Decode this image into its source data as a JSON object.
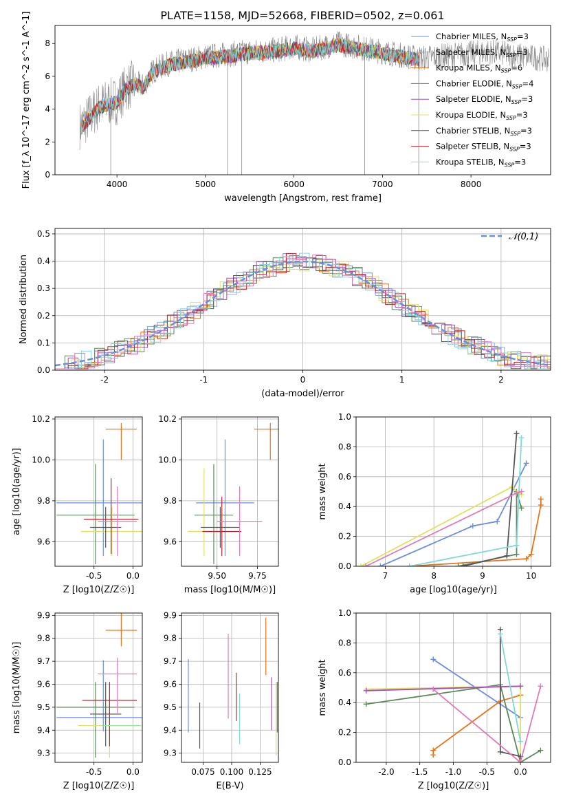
{
  "title": "PLATE=1158, MJD=52668, FIBERID=0502, z=0.061",
  "colors": {
    "chabrier_miles": "#6a8fdc",
    "salpeter_miles": "#8ab0e8",
    "kroupa_miles": "#e8731a",
    "chabrier_elodie": "#5a8a5a",
    "salpeter_elodie": "#a64db8",
    "kroupa_elodie": "#e0e060",
    "chabrier_stelib": "#555555",
    "salpeter_stelib": "#c0202a",
    "kroupa_stelib": "#80d8d8",
    "pink": "#e07ab8",
    "light_green": "#90e890",
    "data_grey": "#888888"
  },
  "chart_data": [
    {
      "type": "line",
      "panel": "spectrum",
      "xlabel": "wavelength [Angstrom, rest frame]",
      "ylabel": "Flux [f_λ 10^-17 erg cm^-2 s^-1 A^-1]",
      "xlim": [
        3300,
        8900
      ],
      "ylim": [
        0,
        9.1
      ],
      "xticks": [
        4000,
        5000,
        6000,
        7000,
        8000
      ],
      "yticks": [
        0,
        2,
        4,
        6,
        8
      ],
      "legend": [
        {
          "label": "Chabrier MILES, N_SSP=3",
          "color_key": "chabrier_miles"
        },
        {
          "label": "Salpeter MILES, N_SSP=3",
          "color_key": "salpeter_miles"
        },
        {
          "label": "Kroupa MILES, N_SSP=6",
          "color_key": "kroupa_miles"
        },
        {
          "label": "Chabrier ELODIE, N_SSP=4",
          "color_key": "chabrier_elodie"
        },
        {
          "label": "Salpeter ELODIE, N_SSP=3",
          "color_key": "salpeter_elodie"
        },
        {
          "label": "Kroupa ELODIE, N_SSP=3",
          "color_key": "kroupa_elodie"
        },
        {
          "label": "Chabrier STELIB, N_SSP=3",
          "color_key": "chabrier_stelib"
        },
        {
          "label": "Salpeter STELIB, N_SSP=3",
          "color_key": "salpeter_stelib"
        },
        {
          "label": "Kroupa STELIB, N_SSP=3",
          "color_key": "kroupa_stelib"
        }
      ],
      "legend_position": "right",
      "continuum": {
        "x": [
          3600,
          3700,
          3800,
          3900,
          4000,
          4100,
          4200,
          4300,
          4400,
          4500,
          4600,
          4800,
          5000,
          5200,
          5500,
          5800,
          6000,
          6200,
          6500,
          6800,
          7000,
          7200,
          7400,
          7600,
          7800,
          8000,
          8200,
          8500,
          8900
        ],
        "y": [
          3.0,
          3.6,
          4.2,
          4.4,
          4.5,
          5.3,
          5.6,
          5.4,
          6.3,
          6.6,
          6.8,
          7.0,
          7.2,
          7.3,
          7.5,
          7.6,
          7.8,
          7.6,
          8.0,
          7.7,
          7.5,
          7.3,
          7.1,
          7.2,
          7.3,
          7.4,
          7.5,
          7.3,
          7.0
        ]
      }
    },
    {
      "type": "bar",
      "panel": "residuals",
      "xlabel": "(data-model)/error",
      "ylabel": "Normed distribution",
      "xlim": [
        -2.5,
        2.5
      ],
      "ylim": [
        0,
        0.52
      ],
      "xticks": [
        -2,
        -1,
        0,
        1,
        2
      ],
      "yticks": [
        0.0,
        0.1,
        0.2,
        0.3,
        0.4,
        0.5
      ],
      "reference_label": "𝒩(0,1)",
      "reference_curve": "normal(0,1)"
    },
    {
      "type": "scatter",
      "panel": "age_vs_Z",
      "xlabel": "Z [log10(Z/Z☉)]",
      "ylabel": "age [log10(age/yr)]",
      "xlim": [
        -1.0,
        0.12
      ],
      "ylim": [
        9.48,
        10.21
      ],
      "xticks": [
        -0.5,
        0.0
      ],
      "yticks": [
        9.6,
        9.8,
        10.0,
        10.2
      ],
      "points": [
        {
          "x": -0.38,
          "y": 9.79,
          "xerr": 0.6,
          "yerr": [
            0.26,
            0.31
          ],
          "color_key": "chabrier_miles"
        },
        {
          "x": -0.15,
          "y": 10.15,
          "xerr": 0.2,
          "yerr": [
            0.15,
            0.03
          ],
          "color_key": "kroupa_miles"
        },
        {
          "x": -0.48,
          "y": 9.73,
          "xerr": 0.5,
          "yerr": [
            0.24,
            0.25
          ],
          "color_key": "chabrier_elodie"
        },
        {
          "x": -0.27,
          "y": 9.65,
          "xerr": 0.4,
          "yerr": [
            0.12,
            0.12
          ],
          "color_key": "kroupa_elodie"
        },
        {
          "x": -0.35,
          "y": 9.67,
          "xerr": 0.2,
          "yerr": [
            0.1,
            0.1
          ],
          "color_key": "chabrier_stelib"
        },
        {
          "x": -0.28,
          "y": 9.71,
          "xerr": 0.35,
          "yerr": [
            0.17,
            0.2
          ],
          "color_key": "salpeter_stelib"
        },
        {
          "x": -0.2,
          "y": 9.7,
          "xerr": 0.25,
          "yerr": [
            0.17,
            0.17
          ],
          "color_key": "pink"
        }
      ]
    },
    {
      "type": "scatter",
      "panel": "age_vs_mass",
      "xlabel": "mass [log10(M/M☉)]",
      "ylabel": "",
      "xlim": [
        9.28,
        9.88
      ],
      "ylim": [
        9.48,
        10.21
      ],
      "xticks": [
        9.5,
        9.75
      ],
      "yticks": [
        9.6,
        9.8,
        10.0,
        10.2
      ],
      "points": [
        {
          "x": 9.55,
          "y": 9.79,
          "xerr": 0.18,
          "yerr": [
            0.26,
            0.31
          ],
          "color_key": "chabrier_miles"
        },
        {
          "x": 9.83,
          "y": 10.15,
          "xerr": 0.1,
          "yerr": [
            0.15,
            0.03
          ],
          "color_key": "kroupa_miles"
        },
        {
          "x": 9.48,
          "y": 9.73,
          "xerr": 0.12,
          "yerr": [
            0.24,
            0.25
          ],
          "color_key": "chabrier_elodie"
        },
        {
          "x": 9.42,
          "y": 9.65,
          "xerr": 0.1,
          "yerr": [
            0.12,
            0.31
          ],
          "color_key": "kroupa_elodie"
        },
        {
          "x": 9.52,
          "y": 9.67,
          "xerr": 0.12,
          "yerr": [
            0.1,
            0.1
          ],
          "color_key": "chabrier_stelib"
        },
        {
          "x": 9.53,
          "y": 9.65,
          "xerr": 0.12,
          "yerr": [
            0.12,
            0.17
          ],
          "color_key": "salpeter_stelib"
        },
        {
          "x": 9.64,
          "y": 9.7,
          "xerr": 0.14,
          "yerr": [
            0.17,
            0.17
          ],
          "color_key": "pink"
        }
      ]
    },
    {
      "type": "line",
      "panel": "weight_vs_age",
      "xlabel": "age [log10(age/yr)]",
      "ylabel": "mass weight",
      "xlim": [
        6.4,
        10.4
      ],
      "ylim": [
        0,
        1.0
      ],
      "xticks": [
        7,
        8,
        9,
        10
      ],
      "yticks": [
        0.0,
        0.2,
        0.4,
        0.6,
        0.8,
        1.0
      ],
      "series": [
        {
          "color_key": "chabrier_miles",
          "x": [
            6.9,
            8.8,
            9.3,
            9.9
          ],
          "y": [
            0.0,
            0.27,
            0.3,
            0.69
          ]
        },
        {
          "color_key": "kroupa_miles",
          "x": [
            7.5,
            9.9,
            10.0,
            10.2,
            10.2
          ],
          "y": [
            0.0,
            0.05,
            0.08,
            0.41,
            0.45
          ]
        },
        {
          "color_key": "chabrier_elodie",
          "x": [
            8.5,
            9.7,
            9.7,
            9.8
          ],
          "y": [
            0.0,
            0.08,
            0.5,
            0.39
          ]
        },
        {
          "color_key": "kroupa_elodie",
          "x": [
            6.5,
            9.6,
            9.8
          ],
          "y": [
            0.0,
            0.53,
            0.48
          ]
        },
        {
          "color_key": "chabrier_stelib",
          "x": [
            8.6,
            9.5,
            9.7
          ],
          "y": [
            0.0,
            0.07,
            0.89
          ]
        },
        {
          "color_key": "kroupa_stelib",
          "x": [
            7.5,
            9.7,
            9.8
          ],
          "y": [
            0.0,
            0.14,
            0.86
          ]
        },
        {
          "color_key": "pink",
          "x": [
            6.6,
            9.7,
            9.8
          ],
          "y": [
            0.0,
            0.49,
            0.5
          ]
        }
      ]
    },
    {
      "type": "scatter",
      "panel": "mass_vs_Z",
      "xlabel": "Z [log10(Z/Z☉)]",
      "ylabel": "mass [log10(M/M☉)]",
      "xlim": [
        -1.0,
        0.12
      ],
      "ylim": [
        9.26,
        9.91
      ],
      "xticks": [
        -0.5,
        0.0
      ],
      "yticks": [
        9.3,
        9.4,
        9.5,
        9.6,
        9.7,
        9.8,
        9.9
      ],
      "points": [
        {
          "x": -0.38,
          "y": 9.455,
          "xerr": 0.6,
          "yerr": [
            0.06,
            0.25
          ],
          "color_key": "chabrier_miles"
        },
        {
          "x": -0.15,
          "y": 9.835,
          "xerr": 0.2,
          "yerr": [
            0.07,
            0.12
          ],
          "color_key": "kroupa_miles"
        },
        {
          "x": -0.48,
          "y": 9.5,
          "xerr": 0.5,
          "yerr": [
            0.22,
            0.11
          ],
          "color_key": "chabrier_elodie"
        },
        {
          "x": -0.3,
          "y": 9.42,
          "xerr": 0.4,
          "yerr": [
            0.14,
            0.13
          ],
          "color_key": "kroupa_elodie"
        },
        {
          "x": -0.35,
          "y": 9.47,
          "xerr": 0.2,
          "yerr": [
            0.14,
            0.14
          ],
          "color_key": "chabrier_stelib"
        },
        {
          "x": -0.3,
          "y": 9.53,
          "xerr": 0.35,
          "yerr": [
            0.2,
            0.08
          ],
          "color_key": "salpeter_stelib"
        },
        {
          "x": -0.2,
          "y": 9.645,
          "xerr": 0.25,
          "yerr": [
            0.17,
            0.07
          ],
          "color_key": "pink"
        },
        {
          "x": -0.15,
          "y": 9.42,
          "xerr": 0.25,
          "yerr": [
            0.0,
            0.0
          ],
          "color_key": "light_green"
        }
      ]
    },
    {
      "type": "scatter",
      "panel": "mass_vs_ebv",
      "xlabel": "E(B-V)",
      "ylabel": "",
      "xlim": [
        0.056,
        0.141
      ],
      "ylim": [
        9.26,
        9.91
      ],
      "xticks": [
        0.075,
        0.1,
        0.125
      ],
      "yticks": [
        9.3,
        9.4,
        9.5,
        9.6,
        9.7,
        9.8,
        9.9
      ],
      "points": [
        {
          "x": 0.062,
          "y": 9.55,
          "yerr": [
            0.16,
            0.16
          ],
          "color_key": "chabrier_miles"
        },
        {
          "x": 0.072,
          "y": 9.42,
          "yerr": [
            0.1,
            0.1
          ],
          "color_key": "chabrier_stelib"
        },
        {
          "x": 0.097,
          "y": 9.64,
          "yerr": [
            0.19,
            0.18
          ],
          "color_key": "pink"
        },
        {
          "x": 0.104,
          "y": 9.55,
          "yerr": [
            0.11,
            0.1
          ],
          "color_key": "salpeter_stelib"
        },
        {
          "x": 0.107,
          "y": 9.45,
          "yerr": [
            0.11,
            0.11
          ],
          "color_key": "kroupa_stelib"
        },
        {
          "x": 0.13,
          "y": 9.76,
          "yerr": [
            0.12,
            0.13
          ],
          "color_key": "kroupa_miles"
        },
        {
          "x": 0.135,
          "y": 9.52,
          "yerr": [
            0.12,
            0.11
          ],
          "color_key": "salpeter_elodie"
        },
        {
          "x": 0.139,
          "y": 9.45,
          "yerr": [
            0.16,
            0.16
          ],
          "color_key": "kroupa_elodie"
        },
        {
          "x": 0.14,
          "y": 9.5,
          "yerr": [
            0.11,
            0.11
          ],
          "color_key": "chabrier_elodie"
        }
      ]
    },
    {
      "type": "line",
      "panel": "weight_vs_Z",
      "xlabel": "Z [log10(Z/Z☉)]",
      "ylabel": "mass weight",
      "xlim": [
        -2.45,
        0.45
      ],
      "ylim": [
        0,
        1.0
      ],
      "xticks": [
        -2.0,
        -1.5,
        -1.0,
        -0.5,
        0.0
      ],
      "yticks": [
        0.0,
        0.2,
        0.4,
        0.6,
        0.8,
        1.0
      ],
      "series": [
        {
          "color_key": "chabrier_miles",
          "x": [
            -1.3,
            0.0
          ],
          "y": [
            0.69,
            0.3
          ]
        },
        {
          "color_key": "kroupa_miles",
          "x": [
            -1.3,
            -1.3,
            -0.3,
            0.0
          ],
          "y": [
            0.05,
            0.08,
            0.41,
            0.45
          ]
        },
        {
          "color_key": "chabrier_elodie",
          "x": [
            -2.3,
            -0.3,
            0.0,
            0.3
          ],
          "y": [
            0.39,
            0.52,
            0.0,
            0.08
          ]
        },
        {
          "color_key": "kroupa_elodie",
          "x": [
            -2.3,
            0.0,
            0.0
          ],
          "y": [
            0.49,
            0.51,
            0.0
          ]
        },
        {
          "color_key": "salpeter_elodie",
          "x": [
            -2.3,
            0.0
          ],
          "y": [
            0.48,
            0.51
          ]
        },
        {
          "color_key": "chabrier_stelib",
          "x": [
            -0.3,
            -0.3,
            0.0
          ],
          "y": [
            0.89,
            0.07,
            0.04
          ]
        },
        {
          "color_key": "kroupa_stelib",
          "x": [
            -0.3,
            0.0
          ],
          "y": [
            0.86,
            0.14
          ]
        },
        {
          "color_key": "pink",
          "x": [
            -1.3,
            0.0,
            0.3
          ],
          "y": [
            0.49,
            0.0,
            0.51
          ]
        }
      ]
    }
  ]
}
